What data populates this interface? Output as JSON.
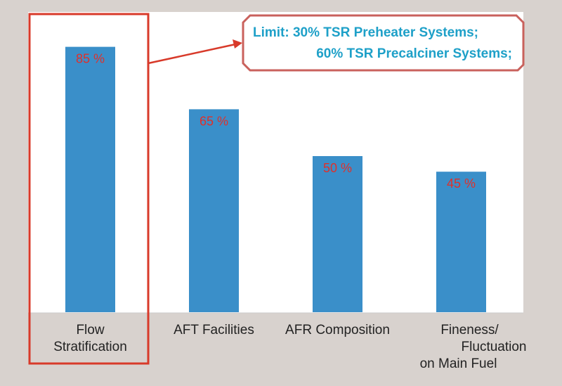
{
  "chart_data": {
    "type": "bar",
    "title": "",
    "xlabel": "",
    "ylabel": "",
    "ylim": [
      0,
      100
    ],
    "grid": false,
    "categories": [
      [
        "Flow",
        "Stratification"
      ],
      [
        "AFT Facilities"
      ],
      [
        "AFR Composition"
      ],
      [
        "Fineness/",
        "Fluctuation",
        "on Main Fuel"
      ]
    ],
    "values": [
      85,
      65,
      50,
      45
    ],
    "value_labels": [
      "85 %",
      "65 %",
      "50 %",
      "45 %"
    ],
    "highlighted_category_index": 0,
    "annotation": {
      "line1": "Limit: 30% TSR Preheater Systems;",
      "line2": "60% TSR Precalciner Systems;"
    },
    "colors": {
      "bar": "#3a8fc9",
      "highlight": "#d83a2a",
      "value_label": "#e0302a",
      "annotation_text": "#1ea0c8",
      "annotation_border": "#c9615c"
    }
  }
}
